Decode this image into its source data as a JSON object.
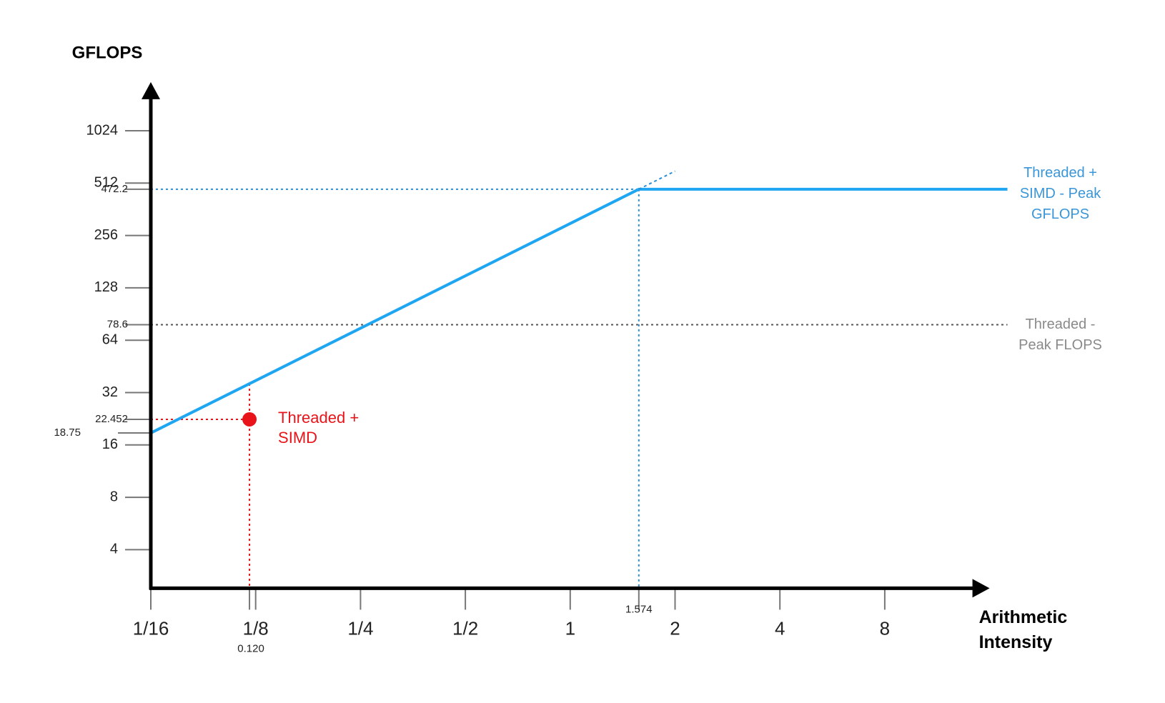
{
  "chart_data": {
    "type": "line",
    "y_label": "GFLOPS",
    "x_label": [
      "Arithmetic",
      "Intensity"
    ],
    "log_base": 2,
    "xlim": [
      0.0625,
      16
    ],
    "ylim": [
      2.4,
      1950
    ],
    "xticks": [
      {
        "value": 0.0625,
        "label": "1/16"
      },
      {
        "value": 0.125,
        "label": "1/8"
      },
      {
        "value": 0.25,
        "label": "1/4"
      },
      {
        "value": 0.5,
        "label": "1/2"
      },
      1,
      2,
      4,
      8
    ],
    "yticks": [
      4,
      8,
      16,
      32,
      64,
      128,
      256,
      512,
      1024
    ],
    "annotated_xticks": [
      {
        "value": 0.12,
        "label": "0.120"
      },
      1.574
    ],
    "annotated_yticks": [
      472.2,
      78.6,
      22.452,
      18.75
    ],
    "series": [
      {
        "color": "#1ea6f2",
        "x": [
          0.0625,
          1.574,
          18
        ],
        "values": [
          18.75,
          472.2,
          472.2
        ]
      },
      {
        "color": "#2a8fd6",
        "style": "dotted",
        "x": [
          1.574,
          2
        ],
        "values": [
          472.2,
          600
        ]
      }
    ],
    "points": [
      {
        "x": {
          "value": 0.12,
          "label": "0.120"
        },
        "y": 22.452,
        "color": "#e8141a"
      }
    ],
    "peaks": [
      {
        "value": 472.2,
        "color": "#3a96d8",
        "guide_color": "#2a8fd6",
        "lines": [
          "Threaded +",
          "SIMD - Peak",
          "GFLOPS"
        ]
      },
      {
        "value": 78.6,
        "color": "#8a8a8a",
        "guide_color": "#555555",
        "lines": [
          "Threaded -",
          "Peak FLOPS"
        ]
      }
    ],
    "point_labels": [
      {
        "color": "#e8141a",
        "lines": [
          "Threaded +",
          "SIMD"
        ]
      }
    ]
  }
}
